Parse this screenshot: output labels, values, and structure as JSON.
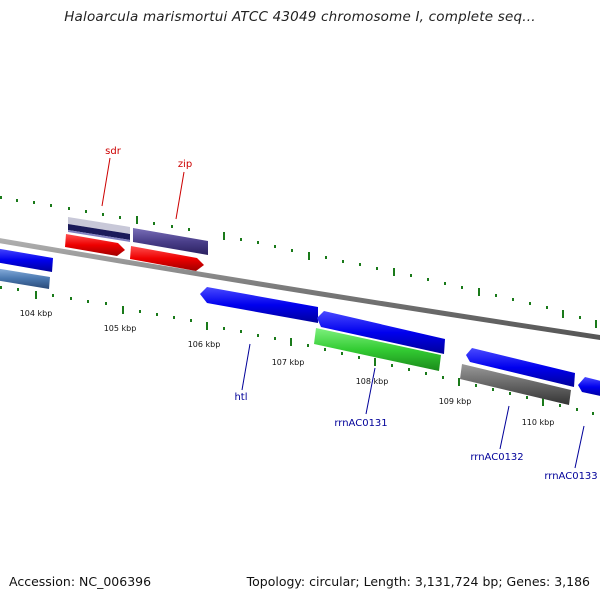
{
  "title": "Haloarcula marismortui ATCC 43049 chromosome I, complete seq...",
  "footer": {
    "accession": "Accession: NC_006396",
    "summary": "Topology: circular; Length: 3,131,724 bp; Genes: 3,186"
  },
  "scale_labels": [
    "104 kbp",
    "105 kbp",
    "106 kbp",
    "107 kbp",
    "108 kbp",
    "109 kbp",
    "110 kbp"
  ],
  "gene_labels": [
    {
      "text": "sdr",
      "color": "#cc0000"
    },
    {
      "text": "zip",
      "color": "#cc0000"
    },
    {
      "text": "htl",
      "color": "#000099"
    },
    {
      "text": "rrnAC0131",
      "color": "#000099"
    },
    {
      "text": "rrnAC0132",
      "color": "#000099"
    },
    {
      "text": "rrnAC0133",
      "color": "#000099"
    }
  ],
  "colors": {
    "backbone": "#808080",
    "tick": "#1a7a1a",
    "forward_cds": "#1010ee",
    "reverse_cds": "#ee1010",
    "purple": "#4a3f8a",
    "green": "#33cc33",
    "gray": "#555555",
    "steel": "#4a78b0"
  }
}
